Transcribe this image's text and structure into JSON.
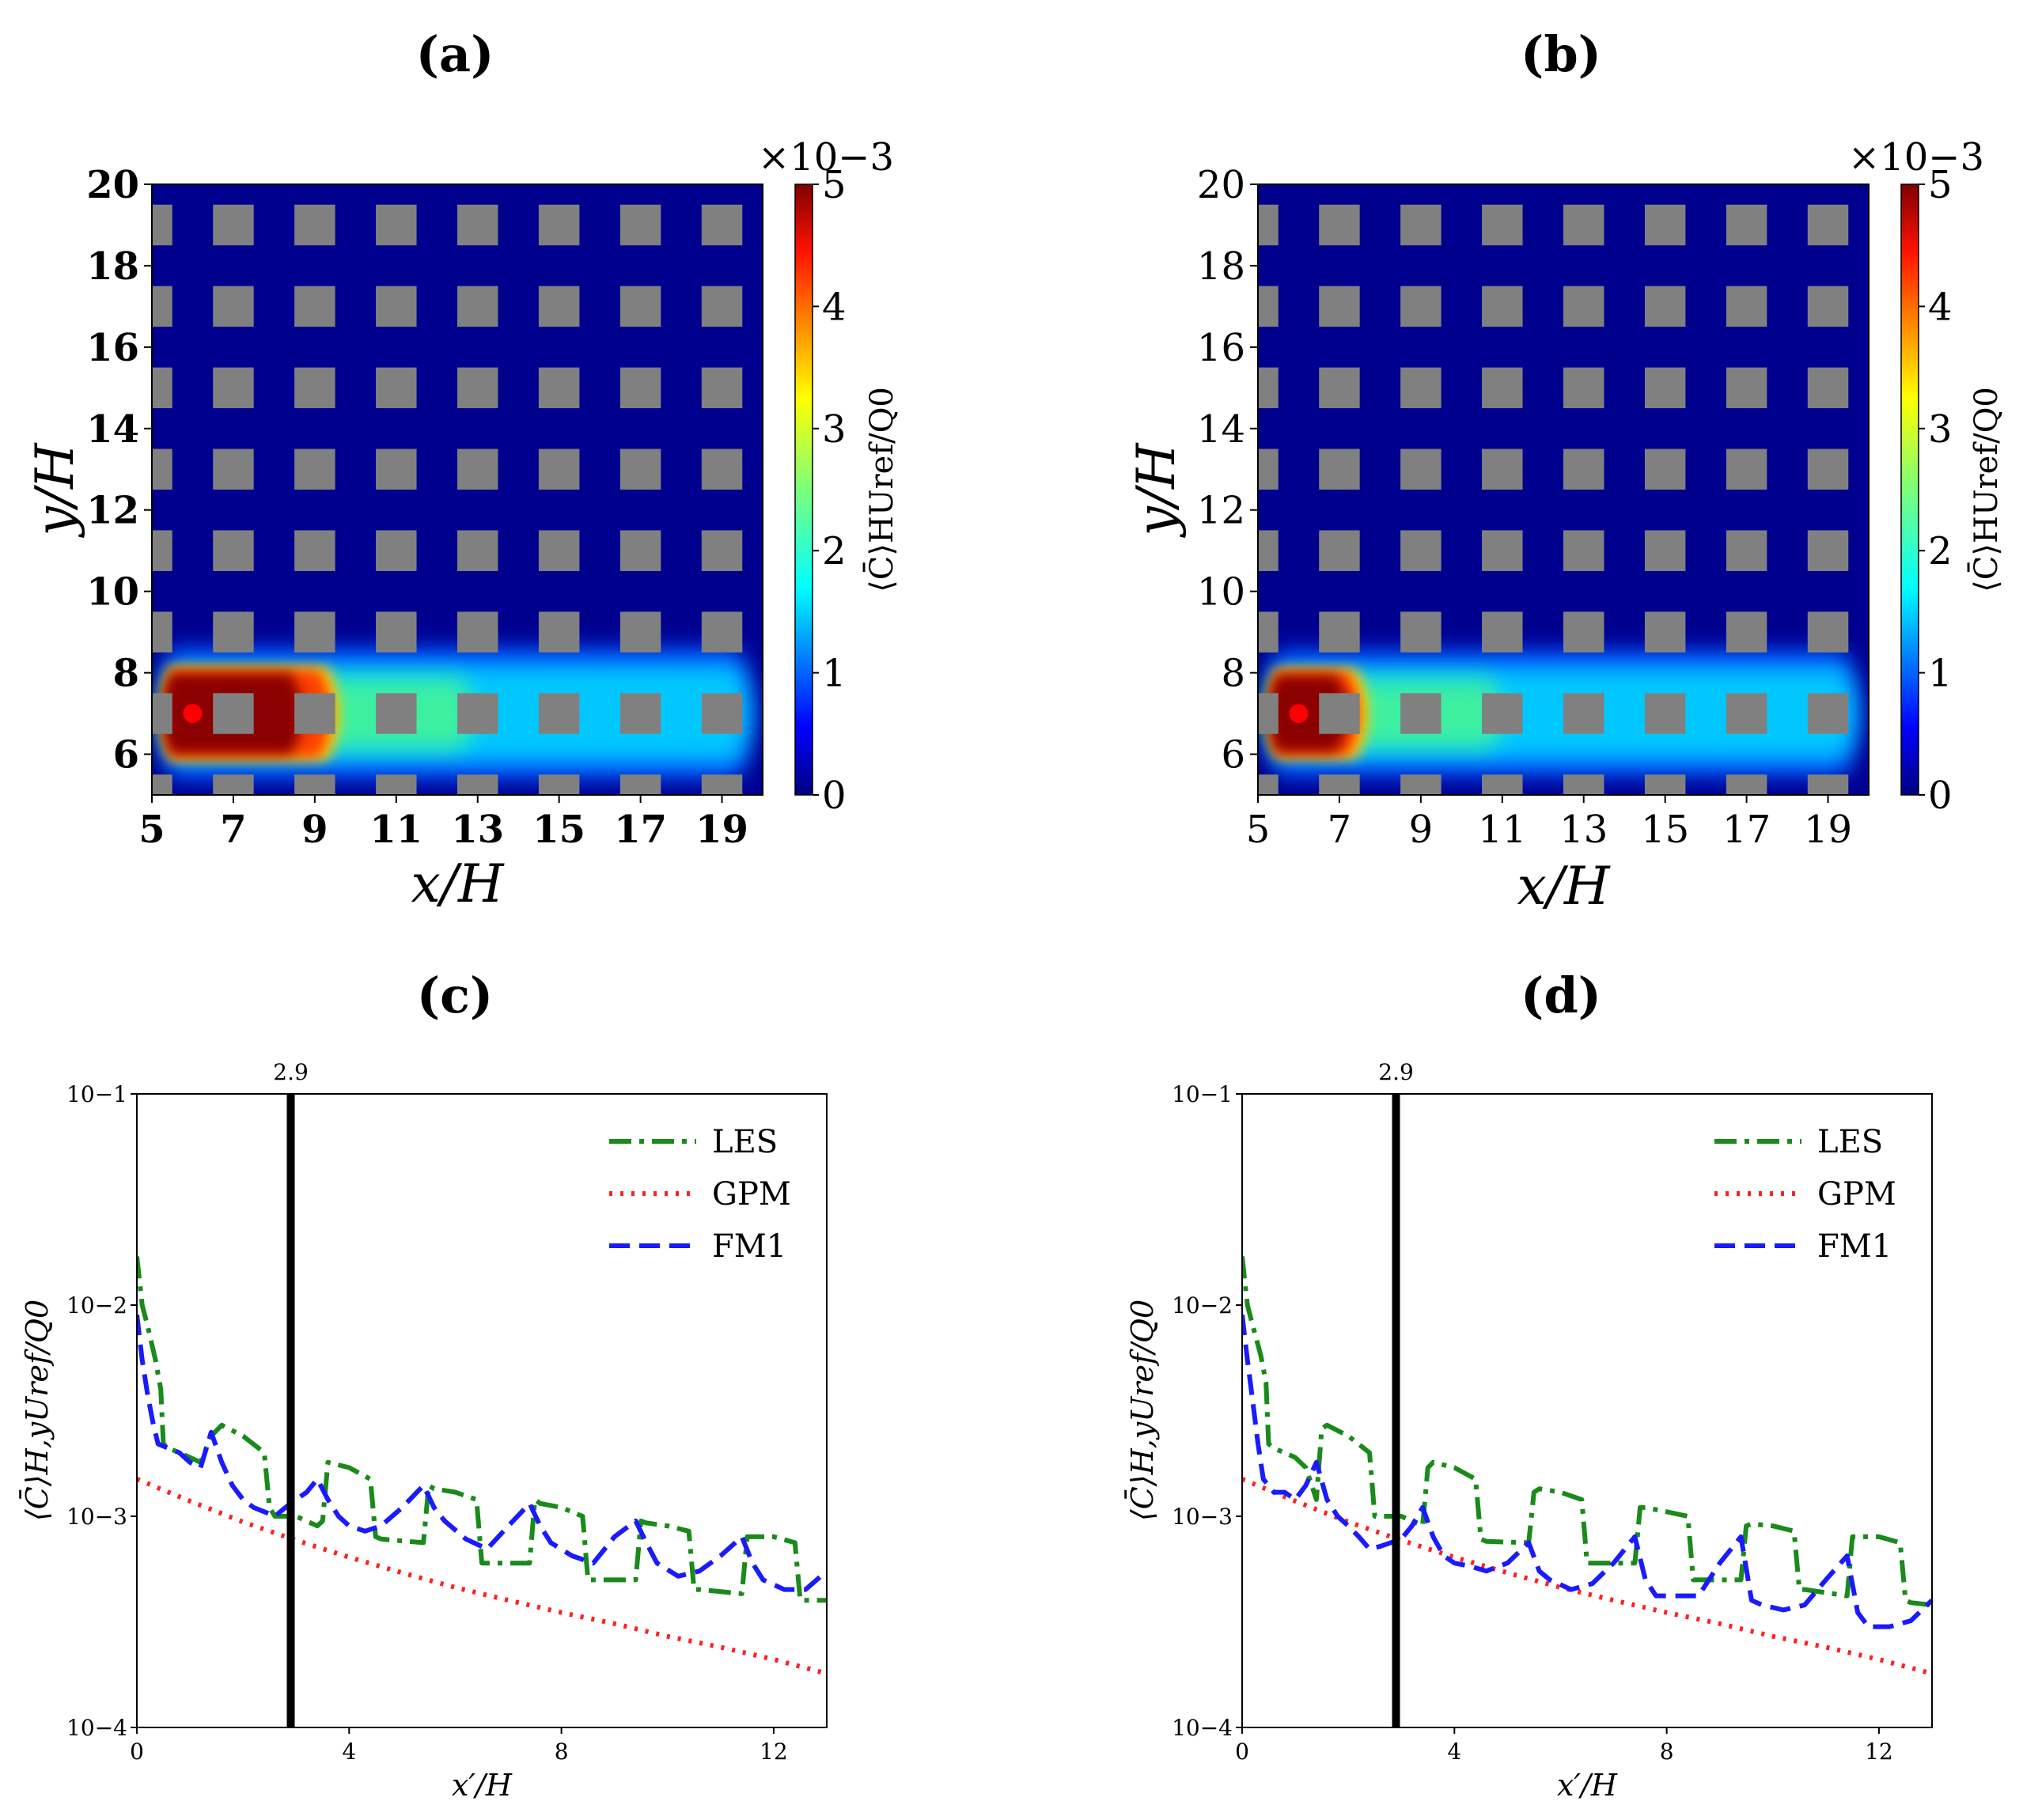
{
  "colors": {
    "heatmap_low": "#00008f",
    "heatmap_mid": "#00c8ff",
    "heatmap_high": "#8b0000",
    "building": "#808080",
    "source": "#ff0000",
    "les": "#1a8a1a",
    "gpm": "#ff2020",
    "fm1": "#1a1aff",
    "marker_line": "#000000"
  },
  "chart_data": [
    {
      "id": "a",
      "panel_label": "(a)",
      "type": "heatmap",
      "title": "",
      "xlabel": "x/H",
      "ylabel": "y/H",
      "xlim": [
        5,
        20
      ],
      "ylim": [
        5,
        20
      ],
      "xticks": [
        "5",
        "7",
        "9",
        "11",
        "13",
        "15",
        "17",
        "19"
      ],
      "yticks": [
        "6",
        "8",
        "10",
        "12",
        "14",
        "16",
        "18",
        "20"
      ],
      "colorbar": {
        "label": "⟨C̄⟩HUref/Q0",
        "multiplier": "×10−3",
        "min": 0,
        "max": 5,
        "ticks": [
          "0",
          "1",
          "2",
          "3",
          "4",
          "5"
        ]
      },
      "source_point": {
        "x": 6,
        "y": 7
      },
      "building_pitch": 2,
      "building_size": 1,
      "building_centers_x": [
        5,
        7,
        9,
        11,
        13,
        15,
        17,
        19
      ],
      "building_centers_y": [
        5,
        7,
        9,
        11,
        13,
        15,
        17,
        19
      ],
      "plume": {
        "high_region_end_x": 9.7,
        "decay_x": 7.5,
        "half_width": 1.2,
        "center_y": 7
      }
    },
    {
      "id": "b",
      "panel_label": "(b)",
      "type": "heatmap",
      "title": "",
      "xlabel": "x/H",
      "ylabel": "y/H",
      "xlim": [
        5,
        20
      ],
      "ylim": [
        5,
        20
      ],
      "xticks": [
        "5",
        "7",
        "9",
        "11",
        "13",
        "15",
        "17",
        "19"
      ],
      "yticks": [
        "6",
        "8",
        "10",
        "12",
        "14",
        "16",
        "18",
        "20"
      ],
      "colorbar": {
        "label": "⟨C̄⟩HUref/Q0",
        "multiplier": "×10−3",
        "min": 0,
        "max": 5,
        "ticks": [
          "0",
          "1",
          "2",
          "3",
          "4",
          "5"
        ]
      },
      "source_point": {
        "x": 6,
        "y": 7
      },
      "building_pitch": 2,
      "building_size": 1,
      "building_centers_x": [
        5,
        7,
        9,
        11,
        13,
        15,
        17,
        19
      ],
      "building_centers_y": [
        5,
        7,
        9,
        11,
        13,
        15,
        17,
        19
      ],
      "plume": {
        "high_region_end_x": 7.8,
        "decay_x": 6.0,
        "half_width": 1.15,
        "center_y": 7
      }
    },
    {
      "id": "c",
      "panel_label": "(c)",
      "type": "line",
      "title": "",
      "xlabel": "x′/H",
      "ylabel": "⟨C̄⟩H,yUref/Q0",
      "yscale": "log",
      "xlim": [
        0,
        13
      ],
      "ylim": [
        0.0001,
        0.1
      ],
      "xticks": [
        "0",
        "4",
        "8",
        "12"
      ],
      "yticks": [
        "10−4",
        "10−3",
        "10−2",
        "10−1"
      ],
      "vline": {
        "x": 2.9,
        "label": "2.9"
      },
      "legend": {
        "position": "top-right",
        "entries": [
          "LES",
          "GPM",
          "FM1"
        ]
      },
      "series": [
        {
          "name": "LES",
          "style": "dashdot",
          "x": [
            0,
            0.1,
            0.2,
            0.35,
            0.45,
            0.5,
            0.6,
            0.8,
            1.0,
            1.2,
            1.4,
            1.6,
            2.0,
            2.4,
            2.5,
            2.6,
            2.9,
            3.0,
            3.4,
            3.5,
            3.6,
            4.0,
            4.4,
            4.5,
            4.6,
            5.4,
            5.5,
            5.6,
            6.0,
            6.4,
            6.5,
            6.6,
            7.4,
            7.5,
            7.6,
            8.0,
            8.4,
            8.5,
            8.6,
            9.4,
            9.5,
            9.6,
            10.0,
            10.4,
            10.5,
            10.6,
            11.4,
            11.5,
            11.6,
            12.0,
            12.4,
            12.5,
            12.6,
            13.0
          ],
          "y": [
            0.017,
            0.01,
            0.008,
            0.0055,
            0.004,
            0.0022,
            0.0021,
            0.002,
            0.0019,
            0.0018,
            0.0024,
            0.0027,
            0.0024,
            0.002,
            0.0011,
            0.001,
            0.001,
            0.001,
            0.0009,
            0.00095,
            0.0018,
            0.0017,
            0.0015,
            0.0008,
            0.00078,
            0.00075,
            0.0014,
            0.00135,
            0.0013,
            0.0012,
            0.0006,
            0.0006,
            0.0006,
            0.0012,
            0.00115,
            0.0011,
            0.001,
            0.0005,
            0.0005,
            0.0005,
            0.00095,
            0.00093,
            0.0009,
            0.00085,
            0.00045,
            0.00045,
            0.00043,
            0.0008,
            0.0008,
            0.0008,
            0.00075,
            0.0004,
            0.0004,
            0.0004
          ]
        },
        {
          "name": "GPM",
          "style": "dotted",
          "x": [
            0,
            1,
            2,
            3,
            4,
            5,
            6,
            7,
            8,
            9,
            10,
            11,
            12,
            13
          ],
          "y": [
            0.0015,
            0.00118,
            0.00094,
            0.00077,
            0.00064,
            0.00054,
            0.00046,
            0.0004,
            0.00035,
            0.00031,
            0.00027,
            0.00024,
            0.00021,
            0.00018
          ]
        },
        {
          "name": "FM1",
          "style": "dashed",
          "x": [
            0,
            0.1,
            0.2,
            0.3,
            0.4,
            0.6,
            0.8,
            1.0,
            1.2,
            1.4,
            1.6,
            1.8,
            2.0,
            2.2,
            2.4,
            2.6,
            2.8,
            3.0,
            3.2,
            3.4,
            3.6,
            3.8,
            4.0,
            4.3,
            4.6,
            5.0,
            5.4,
            5.6,
            5.8,
            6.2,
            6.6,
            7.0,
            7.4,
            7.6,
            7.8,
            8.2,
            8.6,
            9.0,
            9.4,
            9.6,
            9.8,
            10.2,
            10.6,
            11.0,
            11.4,
            11.6,
            11.8,
            12.2,
            12.6,
            13.0
          ],
          "y": [
            0.009,
            0.0055,
            0.0038,
            0.0028,
            0.0022,
            0.0021,
            0.002,
            0.0018,
            0.0017,
            0.0025,
            0.0018,
            0.0014,
            0.0012,
            0.0011,
            0.00105,
            0.001,
            0.0011,
            0.0012,
            0.0013,
            0.0015,
            0.0012,
            0.001,
            0.0009,
            0.00085,
            0.0009,
            0.0011,
            0.0014,
            0.0011,
            0.00095,
            0.00078,
            0.0007,
            0.0009,
            0.00115,
            0.0009,
            0.00075,
            0.00065,
            0.0006,
            0.0008,
            0.00095,
            0.00075,
            0.0006,
            0.00052,
            0.00055,
            0.00065,
            0.0008,
            0.0006,
            0.0005,
            0.00045,
            0.00045,
            0.00055
          ]
        }
      ]
    },
    {
      "id": "d",
      "panel_label": "(d)",
      "type": "line",
      "title": "",
      "xlabel": "x′/H",
      "ylabel": "⟨C̄⟩H,yUref/Q0",
      "yscale": "log",
      "xlim": [
        0,
        13
      ],
      "ylim": [
        0.0001,
        0.1
      ],
      "xticks": [
        "0",
        "4",
        "8",
        "12"
      ],
      "yticks": [
        "10−4",
        "10−3",
        "10−2",
        "10−1"
      ],
      "vline": {
        "x": 2.9,
        "label": "2.9"
      },
      "legend": {
        "position": "top-right",
        "entries": [
          "LES",
          "GPM",
          "FM1"
        ]
      },
      "series": [
        {
          "name": "LES",
          "style": "dashdot",
          "x": [
            0,
            0.1,
            0.2,
            0.35,
            0.45,
            0.5,
            0.6,
            0.8,
            1.0,
            1.2,
            1.4,
            1.5,
            1.6,
            2.0,
            2.4,
            2.5,
            2.6,
            2.9,
            3.0,
            3.4,
            3.5,
            3.6,
            4.0,
            4.4,
            4.5,
            4.6,
            5.4,
            5.5,
            5.6,
            6.0,
            6.4,
            6.5,
            6.6,
            7.4,
            7.5,
            7.6,
            8.0,
            8.4,
            8.5,
            8.6,
            9.4,
            9.5,
            9.6,
            10.0,
            10.4,
            10.5,
            10.6,
            11.4,
            11.5,
            11.6,
            12.0,
            12.4,
            12.5,
            12.6,
            13.0
          ],
          "y": [
            0.017,
            0.01,
            0.008,
            0.0058,
            0.0043,
            0.0022,
            0.0021,
            0.002,
            0.0019,
            0.0017,
            0.0012,
            0.0026,
            0.0027,
            0.0024,
            0.002,
            0.001,
            0.001,
            0.001,
            0.001,
            0.0009,
            0.0017,
            0.0018,
            0.0017,
            0.0015,
            0.00078,
            0.00076,
            0.00075,
            0.0013,
            0.00135,
            0.0013,
            0.0012,
            0.0006,
            0.0006,
            0.0006,
            0.0011,
            0.0011,
            0.00105,
            0.001,
            0.0005,
            0.0005,
            0.0005,
            0.0009,
            0.00092,
            0.0009,
            0.00085,
            0.00045,
            0.00045,
            0.00042,
            0.0008,
            0.0008,
            0.0008,
            0.00075,
            0.0004,
            0.00039,
            0.00038
          ]
        },
        {
          "name": "GPM",
          "style": "dotted",
          "x": [
            0,
            1,
            2,
            3,
            4,
            5,
            6,
            7,
            8,
            9,
            10,
            11,
            12,
            13
          ],
          "y": [
            0.0015,
            0.00118,
            0.00094,
            0.00077,
            0.00064,
            0.00054,
            0.00046,
            0.0004,
            0.00035,
            0.00031,
            0.00027,
            0.00024,
            0.00021,
            0.00018
          ]
        },
        {
          "name": "FM1",
          "style": "dashed",
          "x": [
            0,
            0.1,
            0.2,
            0.3,
            0.4,
            0.6,
            0.8,
            1.0,
            1.2,
            1.4,
            1.6,
            1.8,
            2.0,
            2.2,
            2.4,
            2.6,
            2.8,
            3.0,
            3.2,
            3.4,
            3.6,
            3.8,
            4.0,
            4.3,
            4.6,
            5.0,
            5.4,
            5.6,
            5.8,
            6.2,
            6.6,
            7.0,
            7.4,
            7.6,
            7.8,
            8.2,
            8.6,
            9.0,
            9.4,
            9.6,
            9.8,
            10.2,
            10.6,
            11.0,
            11.4,
            11.6,
            11.8,
            12.2,
            12.6,
            13.0
          ],
          "y": [
            0.009,
            0.0055,
            0.0035,
            0.0022,
            0.0015,
            0.0013,
            0.0013,
            0.0012,
            0.0014,
            0.0018,
            0.0012,
            0.001,
            0.0009,
            0.0008,
            0.0007,
            0.00072,
            0.00075,
            0.00078,
            0.0009,
            0.0011,
            0.0008,
            0.00065,
            0.0006,
            0.00058,
            0.00055,
            0.0006,
            0.00075,
            0.00055,
            0.0005,
            0.00045,
            0.00048,
            0.0006,
            0.0008,
            0.0005,
            0.00042,
            0.00042,
            0.00042,
            0.0006,
            0.0008,
            0.0004,
            0.00038,
            0.00036,
            0.00038,
            0.0005,
            0.00065,
            0.00035,
            0.0003,
            0.0003,
            0.00032,
            0.0004
          ]
        }
      ]
    }
  ]
}
